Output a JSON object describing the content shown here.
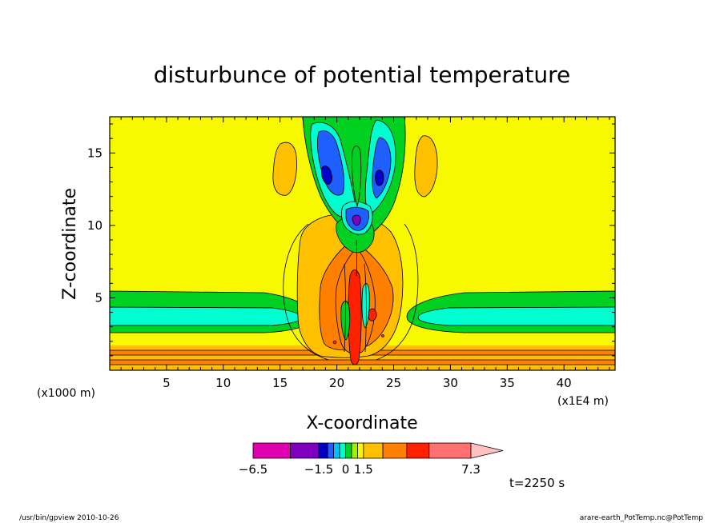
{
  "chart_data": {
    "type": "contour",
    "title": "disturbunce of potential temperature",
    "xlabel": "X-coordinate",
    "ylabel": "Z-coordinate",
    "x_unit": "(x1E4 m)",
    "y_unit": "(x1000 m)",
    "x_ticks": [
      5,
      10,
      15,
      20,
      25,
      30,
      35,
      40
    ],
    "y_ticks": [
      5,
      10,
      15
    ],
    "xlim": [
      0,
      44.5
    ],
    "ylim": [
      0,
      17.5
    ],
    "time_label": "t=2250 s",
    "colorbar": {
      "labels": [
        "-6.5",
        "-1.5",
        "0",
        "1.5",
        "7.3"
      ],
      "levels": [
        -6.5,
        -4.0,
        -1.5,
        -1.0,
        -0.5,
        -0.25,
        0,
        0.25,
        0.5,
        1.5,
        3.0,
        4.0,
        7.3
      ],
      "colors": [
        "#e000b0",
        "#8000c0",
        "#0000c8",
        "#1f5fff",
        "#00c0ff",
        "#00ffd0",
        "#00d020",
        "#a0f000",
        "#f8f800",
        "#ffc000",
        "#ff8000",
        "#ff2000",
        "#ff7070",
        "#ffc0c0"
      ]
    },
    "contour_fills": [
      {
        "level": "0",
        "color": "#f8f800"
      },
      {
        "level": "0.25",
        "color": "#ffc000"
      },
      {
        "level": "0.5",
        "color": "#ff8000"
      },
      {
        "level": "1.5",
        "color": "#ff2000"
      },
      {
        "level": "-0.25",
        "color": "#00d020"
      },
      {
        "level": "-0.5",
        "color": "#00ffd0"
      },
      {
        "level": "-1.0",
        "color": "#1f5fff"
      },
      {
        "level": "-1.5",
        "color": "#0000c8"
      }
    ]
  },
  "footer": {
    "left": "/usr/bin/gpview   2010-10-26",
    "right": "arare-earth_PotTemp.nc@PotTemp"
  }
}
